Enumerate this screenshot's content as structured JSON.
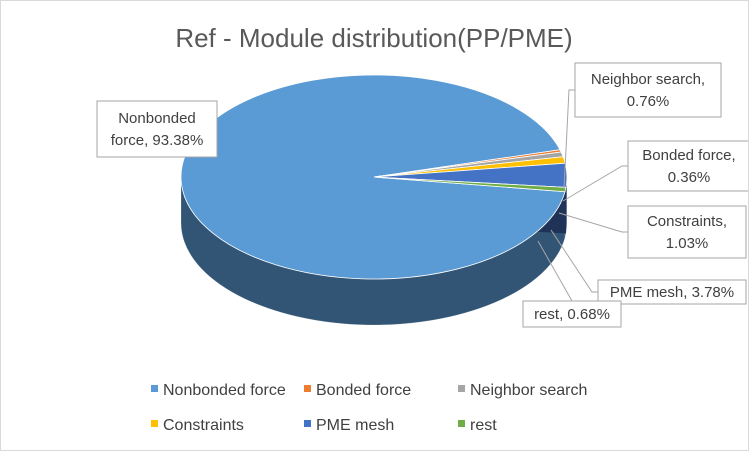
{
  "chart_data": {
    "type": "pie",
    "title": "Ref - Module distribution(PP/PME)",
    "categories": [
      "Nonbonded force",
      "Bonded force",
      "Neighbor search",
      "Constraints",
      "PME mesh",
      "rest"
    ],
    "values": [
      93.38,
      0.36,
      0.76,
      1.03,
      3.78,
      0.68
    ],
    "unit": "%",
    "colors": [
      "#5b9bd5",
      "#ed7d31",
      "#a5a5a5",
      "#ffc000",
      "#4472c4",
      "#70ad47"
    ],
    "data_labels": [
      [
        "Nonbonded",
        "force, 93.38%"
      ],
      [
        "Bonded force,",
        "0.36%"
      ],
      [
        "Neighbor search,",
        "0.76%"
      ],
      [
        "Constraints,",
        "1.03%"
      ],
      [
        "PME mesh, 3.78%"
      ],
      [
        "rest, 0.68%"
      ]
    ],
    "legend_position": "bottom",
    "style": "3d-pie"
  }
}
